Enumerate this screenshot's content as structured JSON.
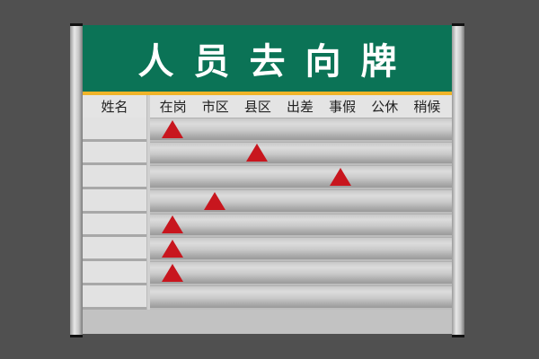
{
  "title": "人员去向牌",
  "name_header": "姓名",
  "statuses": [
    "在岗",
    "市区",
    "县区",
    "出差",
    "事假",
    "公休",
    "稍候"
  ],
  "marker_color": "#c8161e",
  "header_color": "#0b7356",
  "rows": [
    {
      "name": "",
      "status": 0
    },
    {
      "name": "",
      "status": 2
    },
    {
      "name": "",
      "status": 4
    },
    {
      "name": "",
      "status": 1
    },
    {
      "name": "",
      "status": 0
    },
    {
      "name": "",
      "status": 0
    },
    {
      "name": "",
      "status": 0
    },
    {
      "name": "",
      "status": null
    }
  ]
}
